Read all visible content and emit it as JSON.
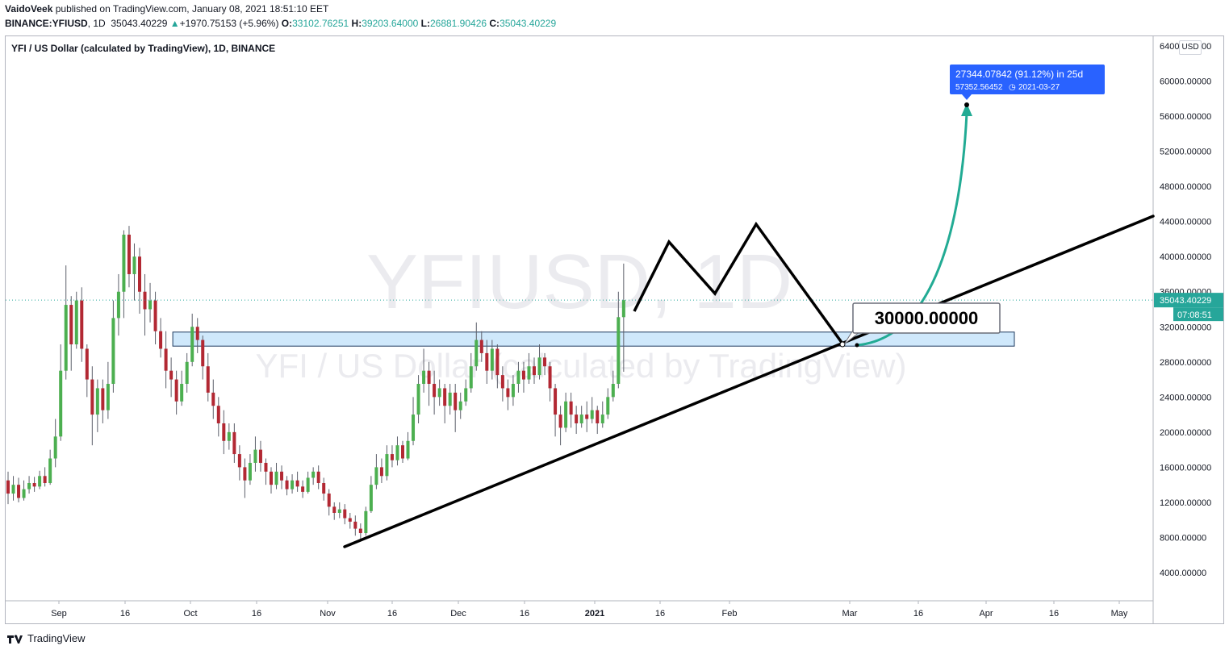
{
  "header": {
    "author": "VaidoVeek",
    "published_text": "published on TradingView.com, January 08, 2021 18:51:10 EET",
    "symbol": "BINANCE:YFIUSD",
    "interval": "1D",
    "last": "35043.40229",
    "change": "+1970.75153 (+5.96%)",
    "o_label": "O:",
    "o_value": "33102.76251",
    "h_label": "H:",
    "h_value": "39203.64000",
    "l_label": "L:",
    "l_value": "26881.90426",
    "c_label": "C:",
    "c_value": "35043.40229"
  },
  "legend_title": "YFI / US Dollar (calculated by TradingView), 1D, BINANCE",
  "currency_button": "USD",
  "footer": {
    "brand": "TradingView"
  },
  "colors": {
    "up": "#26a69a",
    "down": "#ef5350",
    "up_body": "#4caf50",
    "down_body": "#b22833",
    "accent_green": "#22ab94",
    "label_blue": "#2962ff",
    "zone_fill": "#cfe8fb",
    "zone_stroke": "#1e3a5f"
  },
  "chart_data": {
    "type": "candlestick",
    "watermark_main": "YFIUSD, 1D",
    "watermark_sub": "YFI / US Dollar (calculated by TradingView)",
    "x_ticks": [
      "Sep",
      "16",
      "Oct",
      "16",
      "Nov",
      "16",
      "Dec",
      "16",
      "2021",
      "16",
      "Feb",
      "Mar",
      "16",
      "Apr",
      "16",
      "May"
    ],
    "y_ticks": [
      "64000.00000",
      "60000.00000",
      "56000.00000",
      "52000.00000",
      "48000.00000",
      "44000.00000",
      "40000.00000",
      "36000.00000",
      "32000.00000",
      "28000.00000",
      "24000.00000",
      "20000.00000",
      "16000.00000",
      "12000.00000",
      "8000.00000",
      "4000.00000"
    ],
    "ylim": [
      0,
      66000
    ],
    "price_label": "35043.40229",
    "countdown_label": "07:08:51",
    "last_price": 35043.40229,
    "zone": {
      "low": 29800,
      "high": 31400
    },
    "level_label": "30000.00000",
    "projection_label": {
      "line1": "27344.07842 (91.12%) in 25d",
      "line2": "57352.56452",
      "line3": "2021-03-27"
    },
    "target": 57352.56452,
    "support_line": {
      "from": [
        "2020-11-05",
        7200
      ],
      "to": [
        "2021-05-10",
        44000
      ]
    },
    "path_points": [
      [
        33600,
        "a"
      ],
      [
        41500,
        "b"
      ],
      [
        35800,
        "c"
      ],
      [
        43600,
        "d"
      ],
      [
        30000,
        "e"
      ]
    ],
    "candles": [
      [
        14500,
        13000,
        15500,
        11800
      ],
      [
        13000,
        14000,
        15000,
        12200
      ],
      [
        14000,
        12500,
        14800,
        12000
      ],
      [
        12500,
        13500,
        14500,
        12200
      ],
      [
        13500,
        14200,
        15000,
        13000
      ],
      [
        14200,
        13800,
        14900,
        13200
      ],
      [
        13800,
        15000,
        15600,
        13500
      ],
      [
        15000,
        14200,
        16000,
        13800
      ],
      [
        14200,
        17000,
        18000,
        14000
      ],
      [
        17000,
        19500,
        21500,
        16000
      ],
      [
        19500,
        27000,
        30000,
        19000
      ],
      [
        27000,
        34500,
        39000,
        26000
      ],
      [
        34500,
        30000,
        35500,
        27000
      ],
      [
        30000,
        35000,
        36000,
        29500
      ],
      [
        35000,
        29500,
        36500,
        28000
      ],
      [
        29500,
        26000,
        30000,
        24000
      ],
      [
        26000,
        22000,
        27500,
        18500
      ],
      [
        22000,
        25000,
        26000,
        20000
      ],
      [
        25000,
        22500,
        26000,
        21000
      ],
      [
        22500,
        25500,
        28000,
        21500
      ],
      [
        25500,
        33000,
        35000,
        24500
      ],
      [
        33000,
        36000,
        38000,
        31000
      ],
      [
        36000,
        42500,
        43000,
        33000
      ],
      [
        42500,
        38000,
        43500,
        36500
      ],
      [
        38000,
        40000,
        41500,
        35000
      ],
      [
        40000,
        36000,
        41000,
        33500
      ],
      [
        36000,
        34000,
        38000,
        31000
      ],
      [
        34000,
        35000,
        37000,
        32500
      ],
      [
        35000,
        31500,
        36000,
        30000
      ],
      [
        31500,
        29500,
        33000,
        28500
      ],
      [
        29500,
        27000,
        31500,
        25000
      ],
      [
        27000,
        26000,
        28500,
        24000
      ],
      [
        26000,
        23500,
        27000,
        22000
      ],
      [
        23500,
        25500,
        27000,
        23000
      ],
      [
        25500,
        28000,
        29000,
        24500
      ],
      [
        28000,
        32000,
        33500,
        27500
      ],
      [
        32000,
        30500,
        33000,
        29000
      ],
      [
        30500,
        27500,
        31000,
        26000
      ],
      [
        27500,
        24500,
        29000,
        23500
      ],
      [
        24500,
        23000,
        26000,
        21500
      ],
      [
        23000,
        21000,
        24000,
        19500
      ],
      [
        21000,
        19000,
        22500,
        17500
      ],
      [
        19000,
        20000,
        21000,
        18000
      ],
      [
        20000,
        17500,
        21000,
        16500
      ],
      [
        17500,
        16000,
        18500,
        14500
      ],
      [
        16000,
        14500,
        17000,
        12500
      ],
      [
        14500,
        16500,
        17500,
        14000
      ],
      [
        16500,
        18000,
        19500,
        15500
      ],
      [
        18000,
        16500,
        19000,
        15500
      ],
      [
        16500,
        15500,
        17000,
        14000
      ],
      [
        15500,
        14000,
        16000,
        13000
      ],
      [
        14000,
        15500,
        16500,
        13500
      ],
      [
        15500,
        14500,
        16200,
        13500
      ],
      [
        14500,
        13500,
        15000,
        12800
      ],
      [
        13500,
        14500,
        15200,
        13000
      ],
      [
        14500,
        13800,
        15500,
        13200
      ],
      [
        13800,
        13200,
        14500,
        12500
      ],
      [
        13200,
        14800,
        15500,
        13000
      ],
      [
        14800,
        15500,
        16000,
        14000
      ],
      [
        15500,
        14200,
        16200,
        13500
      ],
      [
        14200,
        13000,
        14800,
        12200
      ],
      [
        13000,
        11500,
        13500,
        10500
      ],
      [
        11500,
        10800,
        12000,
        10000
      ],
      [
        10800,
        11200,
        12000,
        10200
      ],
      [
        11200,
        10200,
        11800,
        9500
      ],
      [
        10200,
        9800,
        10800,
        9000
      ],
      [
        9800,
        9000,
        10500,
        8200
      ],
      [
        9000,
        8500,
        9600,
        7800
      ],
      [
        8500,
        11000,
        11500,
        8200
      ],
      [
        11000,
        14000,
        15000,
        10800
      ],
      [
        14000,
        16000,
        17500,
        13500
      ],
      [
        16000,
        15000,
        17000,
        14200
      ],
      [
        15000,
        17500,
        18500,
        14500
      ],
      [
        17500,
        16800,
        18500,
        16000
      ],
      [
        16800,
        18500,
        19500,
        16200
      ],
      [
        18500,
        17000,
        19000,
        16500
      ],
      [
        17000,
        19000,
        20000,
        16800
      ],
      [
        19000,
        22000,
        24000,
        18500
      ],
      [
        22000,
        25500,
        26500,
        21000
      ],
      [
        25500,
        27000,
        29500,
        24500
      ],
      [
        27000,
        25500,
        28000,
        23000
      ],
      [
        25500,
        24000,
        27000,
        22000
      ],
      [
        24000,
        25000,
        26000,
        23000
      ],
      [
        25000,
        23000,
        25500,
        21000
      ],
      [
        23000,
        24500,
        25500,
        22000
      ],
      [
        24500,
        22500,
        25500,
        20000
      ],
      [
        22500,
        23500,
        24500,
        21500
      ],
      [
        23500,
        25000,
        26000,
        23000
      ],
      [
        25000,
        27500,
        29000,
        24500
      ],
      [
        27500,
        30500,
        32500,
        27000
      ],
      [
        30500,
        29000,
        31500,
        28000
      ],
      [
        29000,
        27000,
        30500,
        25500
      ],
      [
        27000,
        29500,
        30500,
        26000
      ],
      [
        29500,
        26500,
        30000,
        25000
      ],
      [
        26500,
        25000,
        27500,
        23500
      ],
      [
        25000,
        24000,
        26000,
        22500
      ],
      [
        24000,
        25500,
        26500,
        23000
      ],
      [
        25500,
        27000,
        28000,
        24500
      ],
      [
        27000,
        26000,
        28000,
        24500
      ],
      [
        26000,
        27500,
        29000,
        25500
      ],
      [
        27500,
        26500,
        28500,
        25500
      ],
      [
        26500,
        28500,
        30000,
        26000
      ],
      [
        28500,
        27500,
        29000,
        26500
      ],
      [
        27500,
        25000,
        28000,
        23500
      ],
      [
        25000,
        22000,
        25500,
        19500
      ],
      [
        22000,
        20500,
        23000,
        18500
      ],
      [
        20500,
        23500,
        24500,
        20000
      ],
      [
        23500,
        22000,
        24500,
        20500
      ],
      [
        22000,
        21000,
        23000,
        19800
      ],
      [
        21000,
        22000,
        23000,
        20500
      ],
      [
        22000,
        21500,
        23500,
        20000
      ],
      [
        21500,
        22500,
        24000,
        21000
      ],
      [
        22500,
        21000,
        23000,
        19800
      ],
      [
        21000,
        22000,
        23500,
        20500
      ],
      [
        22000,
        24000,
        25000,
        21500
      ],
      [
        24000,
        25500,
        27000,
        23500
      ],
      [
        25500,
        33100,
        36000,
        25000
      ],
      [
        33100,
        35043,
        39203,
        26881
      ]
    ]
  }
}
